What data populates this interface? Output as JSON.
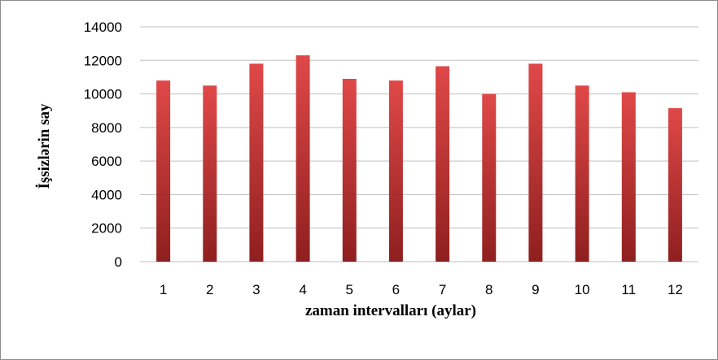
{
  "chart_data": {
    "type": "bar",
    "categories": [
      "1",
      "2",
      "3",
      "4",
      "5",
      "6",
      "7",
      "8",
      "9",
      "10",
      "11",
      "12"
    ],
    "values": [
      10800,
      10500,
      11800,
      12300,
      10900,
      10800,
      11650,
      10000,
      11800,
      10500,
      10100,
      9150
    ],
    "title": "",
    "xlabel": "zaman intervalları (aylar)",
    "ylabel": "İşsizlərin say",
    "ylim": [
      0,
      14000
    ],
    "yticks": [
      "0",
      "2000",
      "4000",
      "6000",
      "8000",
      "10000",
      "12000",
      "14000"
    ],
    "grid": true,
    "legend": "none",
    "colors": {
      "bar_top": "#e04848",
      "bar_bottom": "#8f1f1f",
      "grid": "#bfbfbf",
      "frame": "#8c8c8c"
    }
  }
}
